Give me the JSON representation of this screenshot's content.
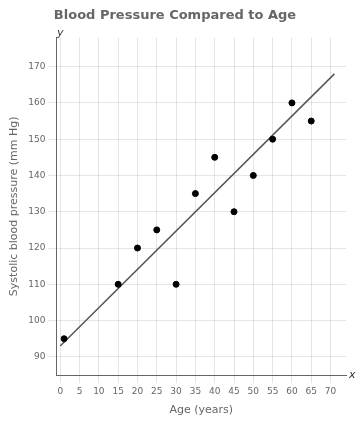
{
  "chart_data": {
    "type": "scatter",
    "title": "Blood Pressure Compared to Age",
    "x_label": "Age (years)",
    "y_label": "Systolic blood pressure (mm Hg)",
    "series": [
      {
        "type": "scatter",
        "color": "#000000",
        "x": [
          1,
          15,
          20,
          25,
          30,
          35,
          40,
          45,
          50,
          55,
          60,
          65
        ],
        "values": [
          95,
          110,
          120,
          125,
          110,
          135,
          145,
          130,
          140,
          150,
          160,
          155
        ]
      },
      {
        "type": "line",
        "color": "#555555",
        "x": [
          0,
          71
        ],
        "values": [
          93,
          168
        ]
      }
    ],
    "xlim": [
      -1,
      74
    ],
    "ylim": [
      85,
      178
    ],
    "xticks": [
      0,
      5,
      10,
      15,
      20,
      25,
      30,
      35,
      40,
      45,
      50,
      55,
      60,
      65,
      70
    ],
    "yticks": [
      90,
      100,
      110,
      120,
      130,
      140,
      150,
      160,
      170
    ],
    "grid": true,
    "annotations": [
      {
        "text": "x",
        "x": 74,
        "y": 85
      },
      {
        "text": "y",
        "x": 0,
        "y": 177.5
      }
    ]
  }
}
